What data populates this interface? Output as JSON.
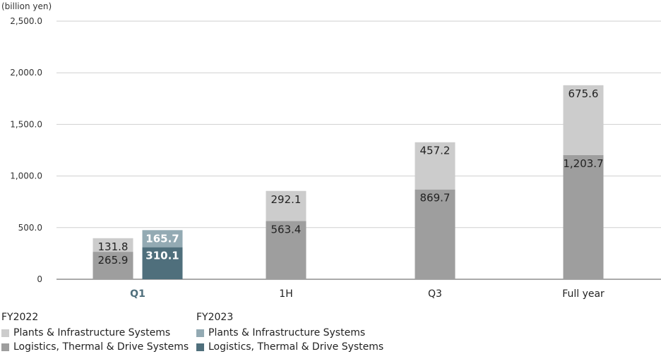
{
  "chart_data": {
    "type": "bar",
    "stacked": true,
    "unit_label": "(billion yen)",
    "ylim": [
      0,
      2500
    ],
    "yticks": [
      0,
      500,
      1000,
      1500,
      2000,
      2500
    ],
    "ytick_labels": [
      "0",
      "500.0",
      "1,000.0",
      "1,500.0",
      "2,000.0",
      "2,500.0"
    ],
    "grid": true,
    "categories": [
      "Q1",
      "1H",
      "Q3",
      "Full year"
    ],
    "highlight_category": "Q1",
    "groups": [
      {
        "name": "FY2022",
        "series": [
          {
            "name": "Logistics, Thermal & Drive Systems",
            "color": "#9e9e9e",
            "values": [
              265.9,
              563.4,
              869.7,
              1203.7
            ],
            "labels": [
              "265.9",
              "563.4",
              "869.7",
              "1,203.7"
            ]
          },
          {
            "name": "Plants & Infrastructure Systems",
            "color": "#cccccc",
            "values": [
              131.8,
              292.1,
              457.2,
              675.6
            ],
            "labels": [
              "131.8",
              "292.1",
              "457.2",
              "675.6"
            ]
          }
        ]
      },
      {
        "name": "FY2023",
        "series": [
          {
            "name": "Logistics, Thermal & Drive Systems",
            "color": "#4f6f7c",
            "values": [
              310.1,
              null,
              null,
              null
            ],
            "labels": [
              "310.1",
              null,
              null,
              null
            ]
          },
          {
            "name": "Plants & Infrastructure Systems",
            "color": "#93aab3",
            "values": [
              165.7,
              null,
              null,
              null
            ],
            "labels": [
              "165.7",
              null,
              null,
              null
            ]
          }
        ]
      }
    ],
    "legend": {
      "placement": "bottom-left",
      "fy2022_title": "FY2022",
      "fy2022_items": [
        {
          "label": "Plants & Infrastructure Systems",
          "color": "#cccccc"
        },
        {
          "label": "Logistics, Thermal & Drive Systems",
          "color": "#9e9e9e"
        }
      ],
      "fy2023_title": "FY2023",
      "fy2023_items": [
        {
          "label": "Plants & Infrastructure Systems",
          "color": "#93aab3"
        },
        {
          "label": "Logistics, Thermal & Drive Systems",
          "color": "#4f6f7c"
        }
      ]
    }
  }
}
